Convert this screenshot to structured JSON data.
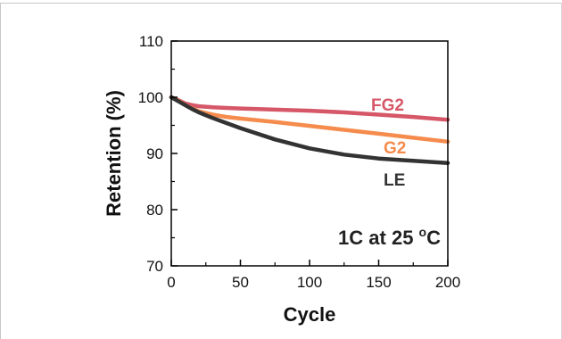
{
  "chart_data": {
    "type": "line",
    "xlabel": "Cycle",
    "ylabel": "Retention (%)",
    "xlim": [
      0,
      200
    ],
    "ylim": [
      70,
      110
    ],
    "xticks": [
      0,
      50,
      100,
      150,
      200
    ],
    "yticks": [
      70,
      80,
      90,
      100,
      110
    ],
    "grid": false,
    "annotation": {
      "text": "1C at 25 ",
      "sup": "o",
      "unit": "C"
    },
    "series": [
      {
        "name": "FG2",
        "color": "#d65868",
        "x": [
          0,
          5,
          10,
          15,
          20,
          30,
          40,
          50,
          75,
          100,
          125,
          150,
          175,
          200
        ],
        "values": [
          100.0,
          99.5,
          98.9,
          98.6,
          98.4,
          98.2,
          98.1,
          98.0,
          97.8,
          97.6,
          97.3,
          96.9,
          96.5,
          96.0
        ]
      },
      {
        "name": "G2",
        "color": "#f58b4c",
        "x": [
          0,
          5,
          10,
          15,
          20,
          30,
          40,
          50,
          75,
          100,
          125,
          150,
          175,
          200
        ],
        "values": [
          100.0,
          99.4,
          98.6,
          98.0,
          97.5,
          96.9,
          96.5,
          96.2,
          95.6,
          94.9,
          94.2,
          93.5,
          92.8,
          92.1
        ]
      },
      {
        "name": "LE",
        "color": "#333333",
        "x": [
          0,
          5,
          10,
          15,
          20,
          30,
          40,
          50,
          75,
          100,
          125,
          150,
          175,
          200
        ],
        "values": [
          100.0,
          99.3,
          98.6,
          97.9,
          97.3,
          96.3,
          95.4,
          94.5,
          92.5,
          90.9,
          89.8,
          89.1,
          88.7,
          88.3
        ]
      }
    ]
  }
}
